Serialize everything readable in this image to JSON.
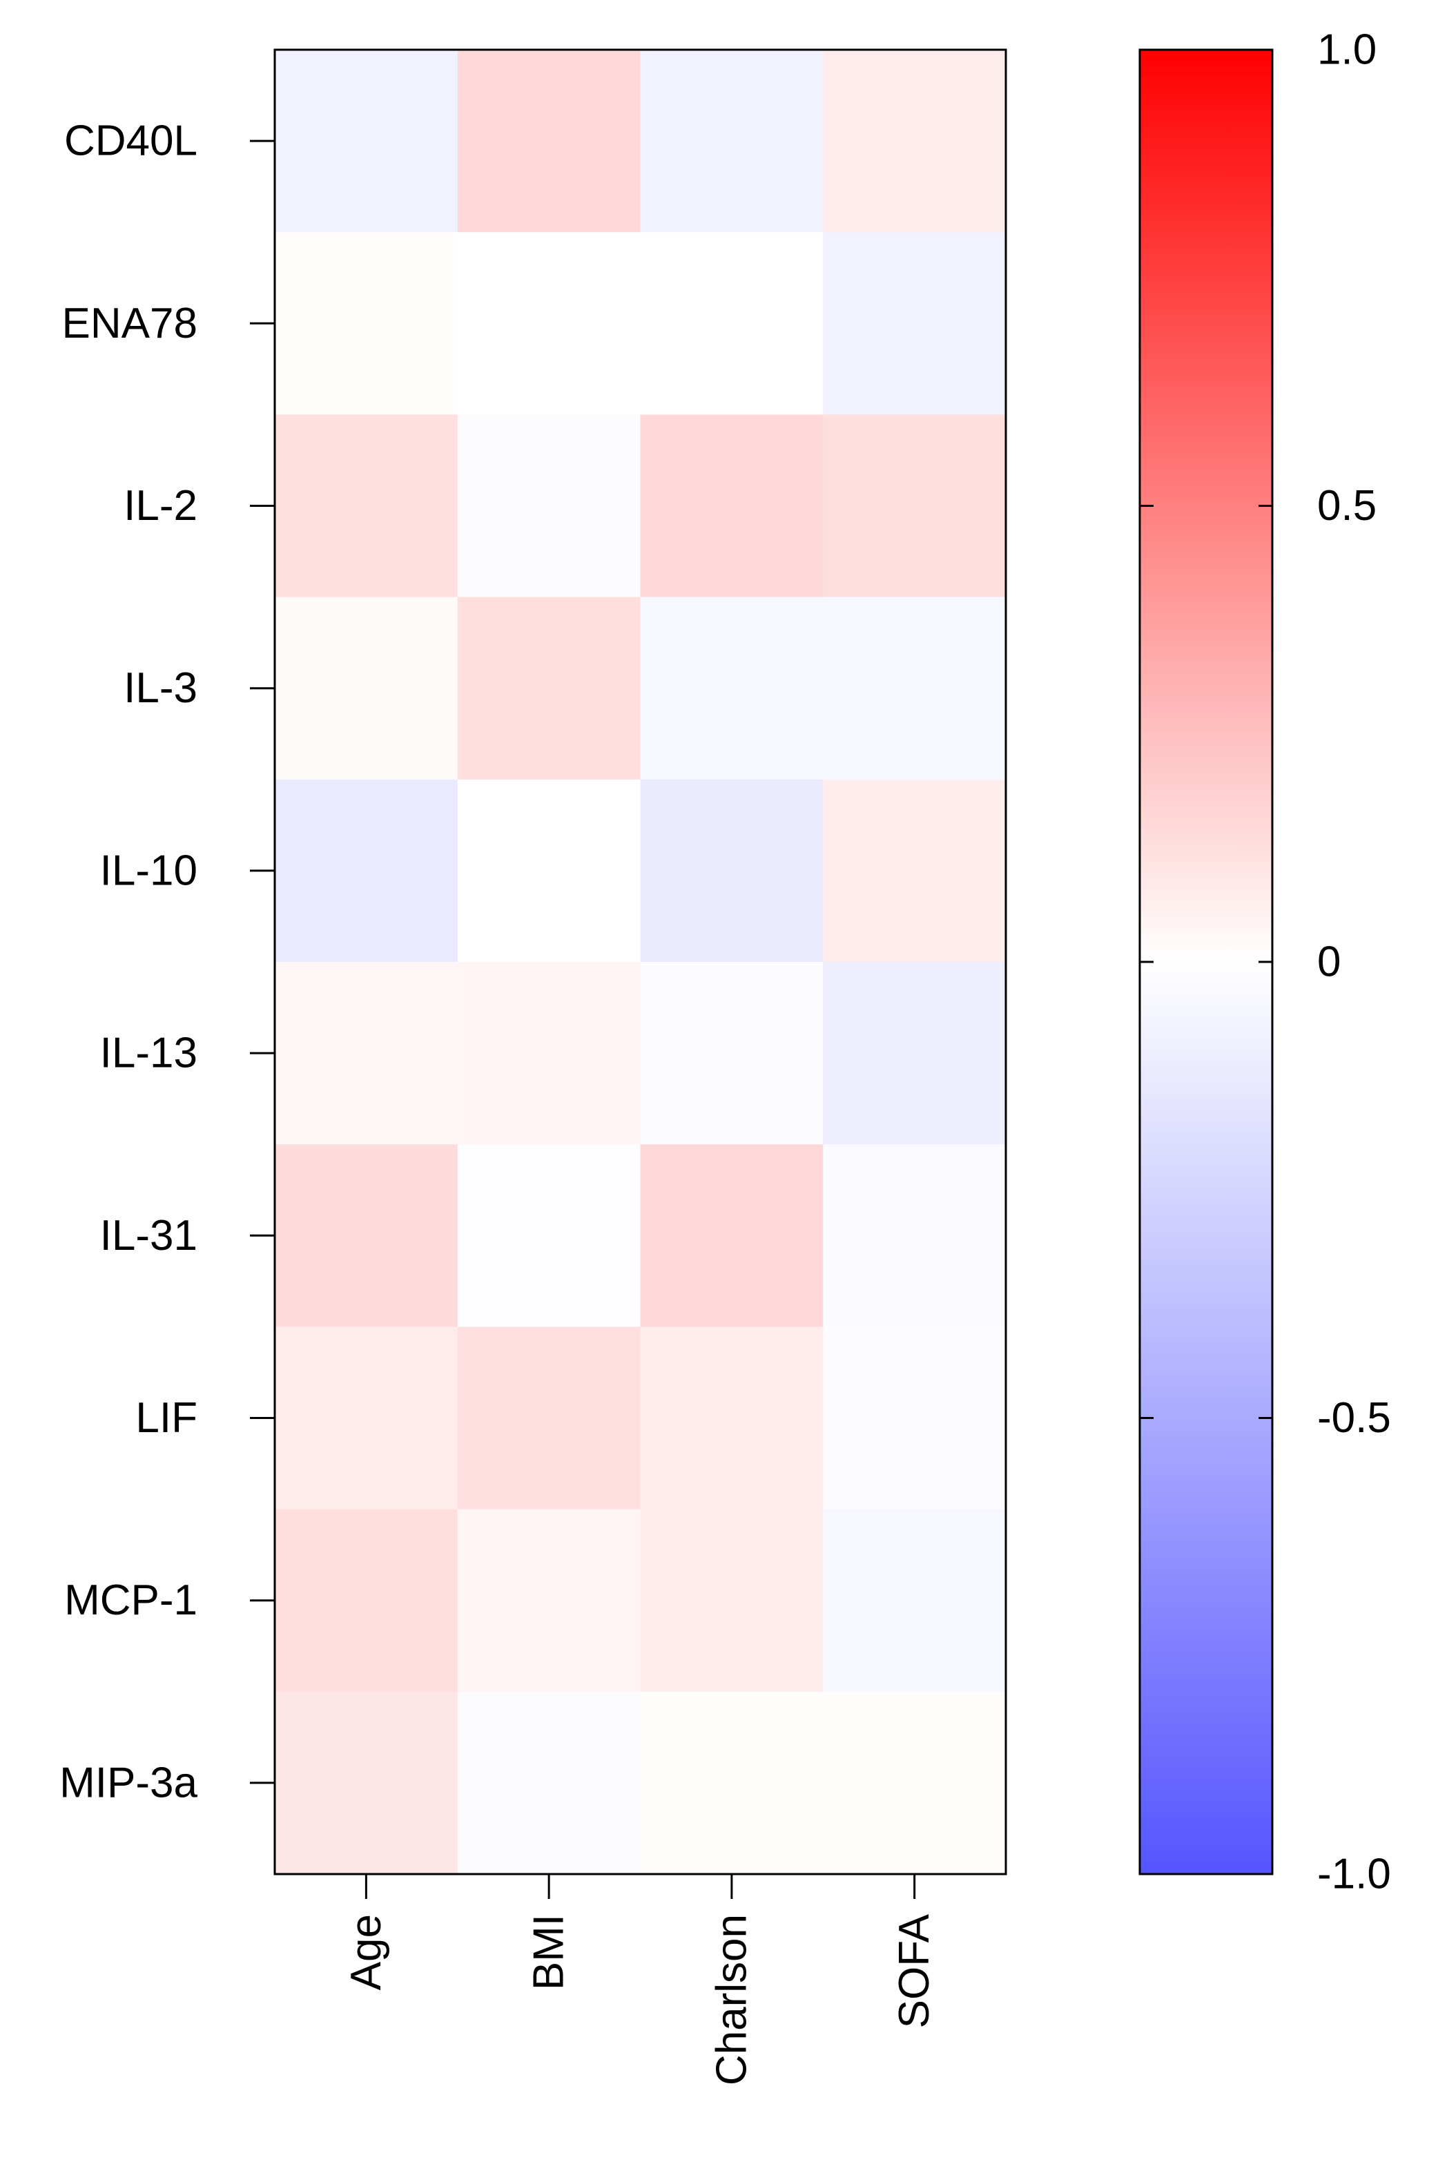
{
  "chart_data": {
    "type": "heatmap",
    "title": "",
    "xlabel": "",
    "ylabel": "",
    "x_categories": [
      "Age",
      "BMI",
      "Charlson",
      "SOFA"
    ],
    "y_categories": [
      "CD40L",
      "ENA78",
      "IL-2",
      "IL-3",
      "IL-10",
      "IL-13",
      "IL-31",
      "LIF",
      "MCP-1",
      "MIP-3a"
    ],
    "values": [
      [
        -0.08,
        0.15,
        -0.07,
        0.08
      ],
      [
        0.01,
        0.0,
        0.0,
        -0.08
      ],
      [
        0.12,
        -0.02,
        0.15,
        0.13
      ],
      [
        0.02,
        0.13,
        -0.05,
        -0.05
      ],
      [
        -0.13,
        0.0,
        -0.12,
        0.07
      ],
      [
        0.03,
        0.04,
        -0.02,
        -0.1
      ],
      [
        0.14,
        -0.01,
        0.15,
        -0.03
      ],
      [
        0.08,
        0.12,
        0.07,
        -0.02
      ],
      [
        0.13,
        0.04,
        0.07,
        -0.05
      ],
      [
        0.1,
        -0.02,
        0.01,
        0.01
      ]
    ],
    "color_scale": {
      "min": -1.0,
      "max": 1.0,
      "min_color": "#5555ff",
      "mid_color": "#ffffff",
      "max_color": "#ff0000"
    },
    "colorbar_ticks": [
      {
        "value": 1.0,
        "label": "1.0"
      },
      {
        "value": 0.5,
        "label": "0.5"
      },
      {
        "value": 0.0,
        "label": "0"
      },
      {
        "value": -0.5,
        "label": "-0.5"
      },
      {
        "value": -1.0,
        "label": "-1.0"
      }
    ],
    "grid": false,
    "legend": "right colorbar"
  }
}
